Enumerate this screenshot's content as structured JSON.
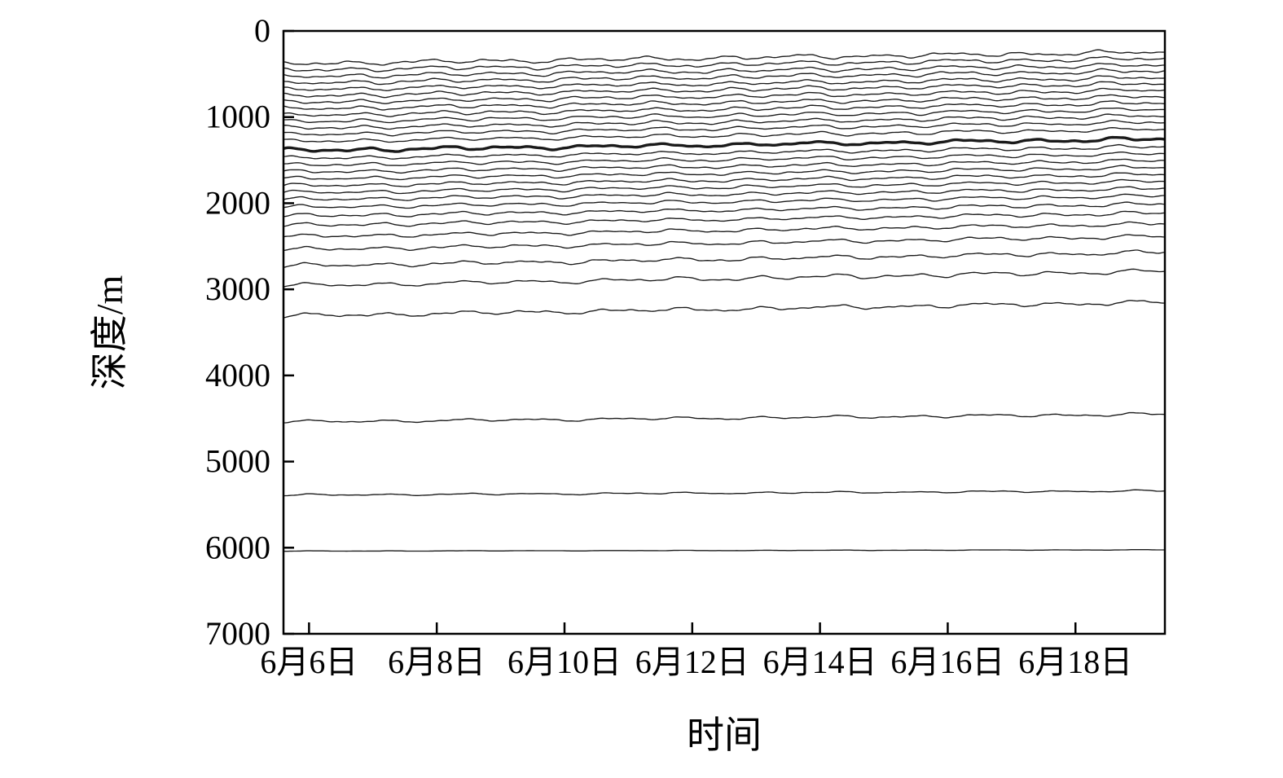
{
  "chart_data": {
    "type": "line",
    "title": "",
    "xlabel": "时间",
    "ylabel": "深度/m",
    "x_tick_labels": [
      "6月6日",
      "6月8日",
      "6月10日",
      "6月12日",
      "6月14日",
      "6月16日",
      "6月18日"
    ],
    "x_tick_days": [
      6,
      8,
      10,
      12,
      14,
      16,
      18
    ],
    "x_range_days": [
      5.6,
      19.4
    ],
    "y_ticks": [
      0,
      1000,
      2000,
      3000,
      4000,
      5000,
      6000,
      7000
    ],
    "ylim": [
      0,
      7000
    ],
    "y_axis_inverted": true,
    "grid": false,
    "legend": "none",
    "line_color": "#1a1a1a",
    "axis_color": "#000000",
    "background": "#ffffff",
    "series": [
      {
        "name": "isoline-01",
        "depth_left": 380,
        "depth_right": 245,
        "amp": 30,
        "bold": false
      },
      {
        "name": "isoline-02",
        "depth_left": 455,
        "depth_right": 320,
        "amp": 30,
        "bold": false
      },
      {
        "name": "isoline-03",
        "depth_left": 530,
        "depth_right": 395,
        "amp": 30,
        "bold": false
      },
      {
        "name": "isoline-04",
        "depth_left": 605,
        "depth_right": 465,
        "amp": 30,
        "bold": false
      },
      {
        "name": "isoline-05",
        "depth_left": 680,
        "depth_right": 540,
        "amp": 30,
        "bold": false
      },
      {
        "name": "isoline-06",
        "depth_left": 755,
        "depth_right": 610,
        "amp": 29,
        "bold": false
      },
      {
        "name": "isoline-07",
        "depth_left": 830,
        "depth_right": 685,
        "amp": 28,
        "bold": false
      },
      {
        "name": "isoline-08",
        "depth_left": 905,
        "depth_right": 760,
        "amp": 28,
        "bold": false
      },
      {
        "name": "isoline-09",
        "depth_left": 980,
        "depth_right": 835,
        "amp": 28,
        "bold": false
      },
      {
        "name": "isoline-10",
        "depth_left": 1055,
        "depth_right": 910,
        "amp": 28,
        "bold": false
      },
      {
        "name": "isoline-11",
        "depth_left": 1130,
        "depth_right": 985,
        "amp": 27,
        "bold": false
      },
      {
        "name": "isoline-12",
        "depth_left": 1205,
        "depth_right": 1060,
        "amp": 26,
        "bold": false
      },
      {
        "name": "isoline-13",
        "depth_left": 1285,
        "depth_right": 1140,
        "amp": 26,
        "bold": false
      },
      {
        "name": "isoline-14-bold",
        "depth_left": 1390,
        "depth_right": 1255,
        "amp": 26,
        "bold": true
      },
      {
        "name": "isoline-15",
        "depth_left": 1480,
        "depth_right": 1345,
        "amp": 26,
        "bold": false
      },
      {
        "name": "isoline-16",
        "depth_left": 1560,
        "depth_right": 1425,
        "amp": 25,
        "bold": false
      },
      {
        "name": "isoline-17",
        "depth_left": 1640,
        "depth_right": 1505,
        "amp": 25,
        "bold": false
      },
      {
        "name": "isoline-18",
        "depth_left": 1720,
        "depth_right": 1585,
        "amp": 25,
        "bold": false
      },
      {
        "name": "isoline-19",
        "depth_left": 1800,
        "depth_right": 1665,
        "amp": 25,
        "bold": false
      },
      {
        "name": "isoline-20",
        "depth_left": 1880,
        "depth_right": 1745,
        "amp": 25,
        "bold": false
      },
      {
        "name": "isoline-21",
        "depth_left": 1960,
        "depth_right": 1830,
        "amp": 25,
        "bold": false
      },
      {
        "name": "isoline-22",
        "depth_left": 2050,
        "depth_right": 1915,
        "amp": 25,
        "bold": false
      },
      {
        "name": "isoline-23",
        "depth_left": 2150,
        "depth_right": 2010,
        "amp": 25,
        "bold": false
      },
      {
        "name": "isoline-24",
        "depth_left": 2260,
        "depth_right": 2115,
        "amp": 25,
        "bold": false
      },
      {
        "name": "isoline-25",
        "depth_left": 2390,
        "depth_right": 2240,
        "amp": 25,
        "bold": false
      },
      {
        "name": "isoline-26",
        "depth_left": 2540,
        "depth_right": 2385,
        "amp": 26,
        "bold": false
      },
      {
        "name": "isoline-27",
        "depth_left": 2730,
        "depth_right": 2570,
        "amp": 28,
        "bold": false
      },
      {
        "name": "isoline-28",
        "depth_left": 2960,
        "depth_right": 2790,
        "amp": 30,
        "bold": false
      },
      {
        "name": "isoline-29",
        "depth_left": 3310,
        "depth_right": 3150,
        "amp": 28,
        "bold": false
      },
      {
        "name": "isoline-30",
        "depth_left": 4540,
        "depth_right": 4450,
        "amp": 20,
        "bold": false
      },
      {
        "name": "isoline-31",
        "depth_left": 5390,
        "depth_right": 5340,
        "amp": 12,
        "bold": false
      },
      {
        "name": "isoline-32",
        "depth_left": 6040,
        "depth_right": 6025,
        "amp": 3,
        "bold": false
      }
    ]
  }
}
